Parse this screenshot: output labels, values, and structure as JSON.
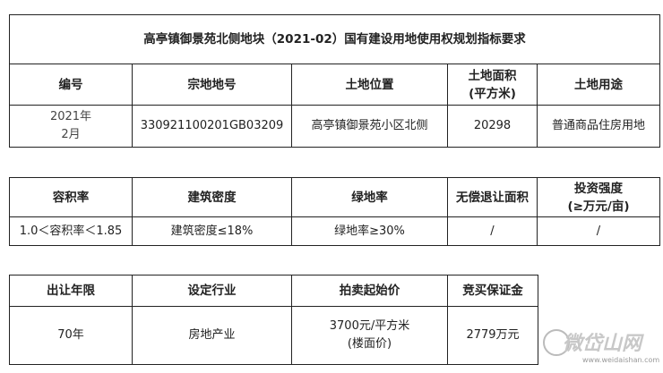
{
  "table1": {
    "title": "高亭镇御景苑北侧地块（2021-02）国有建设用地使用权规划指标要求",
    "headers": [
      "编号",
      "宗地地号",
      "土地位置",
      "土地面积\n(平方米)",
      "土地用途"
    ],
    "row": [
      "2021年\n2月",
      "330921100201GB03209",
      "高亭镇御景苑小区北侧",
      "20298",
      "普通商品住房用地"
    ]
  },
  "table2": {
    "headers": [
      "容积率",
      "建筑密度",
      "绿地率",
      "无偿退让面积",
      "投资强度\n(≥万元/亩)"
    ],
    "row": [
      "1.0＜容积率＜1.85",
      "建筑密度≤18%",
      "绿地率≥30%",
      "/",
      "/"
    ]
  },
  "table3": {
    "headers": [
      "出让年限",
      "设定行业",
      "拍卖起始价",
      "竞买保证金"
    ],
    "row": [
      "70年",
      "房地产业",
      "3700元/平方米\n(楼面价)",
      "2779万元"
    ]
  },
  "watermark": {
    "name": "微岱山网",
    "url": "www.weidaishan.com"
  }
}
